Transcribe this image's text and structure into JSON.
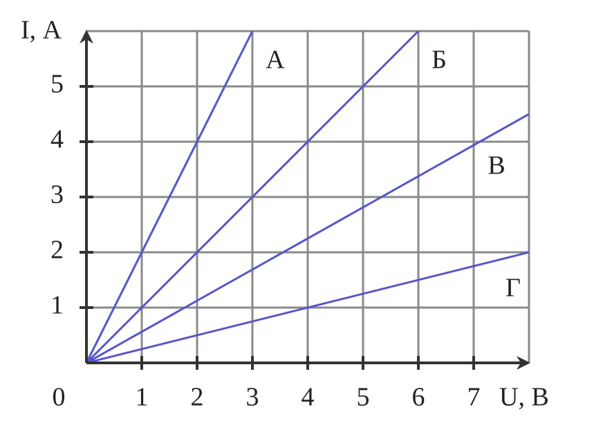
{
  "chart_data": {
    "type": "line",
    "xlabel": "U, В",
    "ylabel": "I, А",
    "xlim": [
      0,
      8
    ],
    "ylim": [
      0,
      6
    ],
    "xticks": [
      0,
      1,
      2,
      3,
      4,
      5,
      6,
      7
    ],
    "yticks": [
      1,
      2,
      3,
      4,
      5
    ],
    "grid": true,
    "series": [
      {
        "name": "А",
        "color": "#5555cc",
        "x": [
          0,
          3
        ],
        "values": [
          0,
          6
        ]
      },
      {
        "name": "Б",
        "color": "#5555cc",
        "x": [
          0,
          6
        ],
        "values": [
          0,
          6
        ]
      },
      {
        "name": "В",
        "color": "#5555cc",
        "x": [
          0,
          8
        ],
        "values": [
          0,
          4.5
        ]
      },
      {
        "name": "Г",
        "color": "#5555cc",
        "x": [
          0,
          8
        ],
        "values": [
          0,
          2
        ]
      }
    ]
  }
}
